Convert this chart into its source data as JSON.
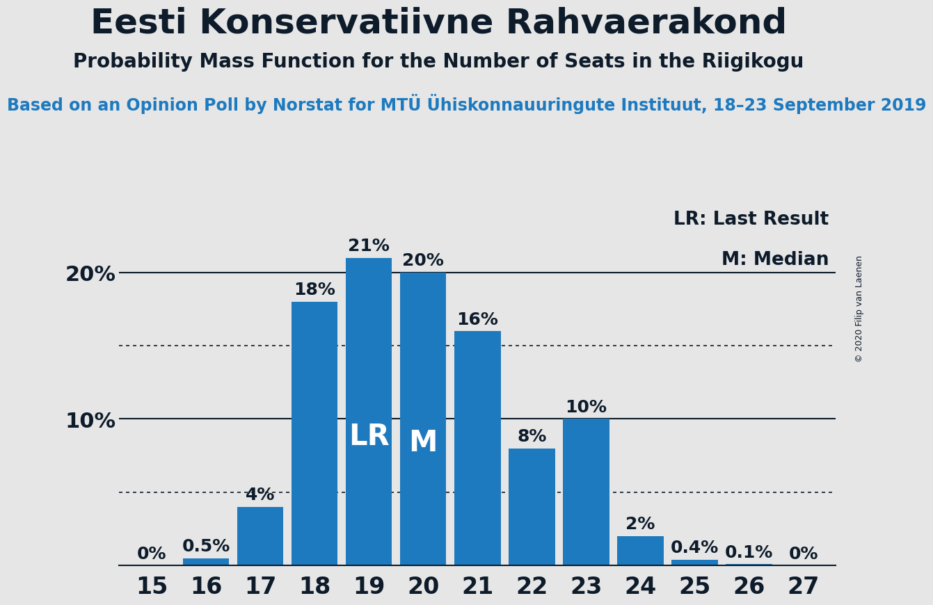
{
  "title": "Eesti Konservatiivne Rahvaerakond",
  "subtitle": "Probability Mass Function for the Number of Seats in the Riigikogu",
  "source": "Based on an Opinion Poll by Norstat for MTÜ Ühiskonnauuringute Instituut, 18–23 September 2019",
  "copyright": "© 2020 Filip van Laenen",
  "seats": [
    15,
    16,
    17,
    18,
    19,
    20,
    21,
    22,
    23,
    24,
    25,
    26,
    27
  ],
  "values": [
    0.0,
    0.5,
    4.0,
    18.0,
    21.0,
    20.0,
    16.0,
    8.0,
    10.0,
    2.0,
    0.4,
    0.1,
    0.0
  ],
  "labels": [
    "0%",
    "0.5%",
    "4%",
    "18%",
    "21%",
    "20%",
    "16%",
    "8%",
    "10%",
    "2%",
    "0.4%",
    "0.1%",
    "0%"
  ],
  "bar_color": "#1e7abf",
  "lr_seat": 19,
  "median_seat": 20,
  "yticks": [
    0,
    10,
    20
  ],
  "ytick_labels": [
    "",
    "10%",
    "20%"
  ],
  "dotted_lines": [
    5,
    15
  ],
  "background_color": "#e6e6e6",
  "plot_bg_color": "#e6e6e6",
  "black_border_color": "#000000",
  "text_color": "#0d1b2a",
  "source_color": "#1e7abf",
  "legend_lr": "LR: Last Result",
  "legend_m": "M: Median",
  "bar_label_fontsize": 18,
  "title_fontsize": 36,
  "subtitle_fontsize": 20,
  "source_fontsize": 17,
  "xtick_fontsize": 24,
  "ytick_fontsize": 22,
  "lr_m_fontsize": 30,
  "legend_fontsize": 19,
  "copyright_fontsize": 9
}
